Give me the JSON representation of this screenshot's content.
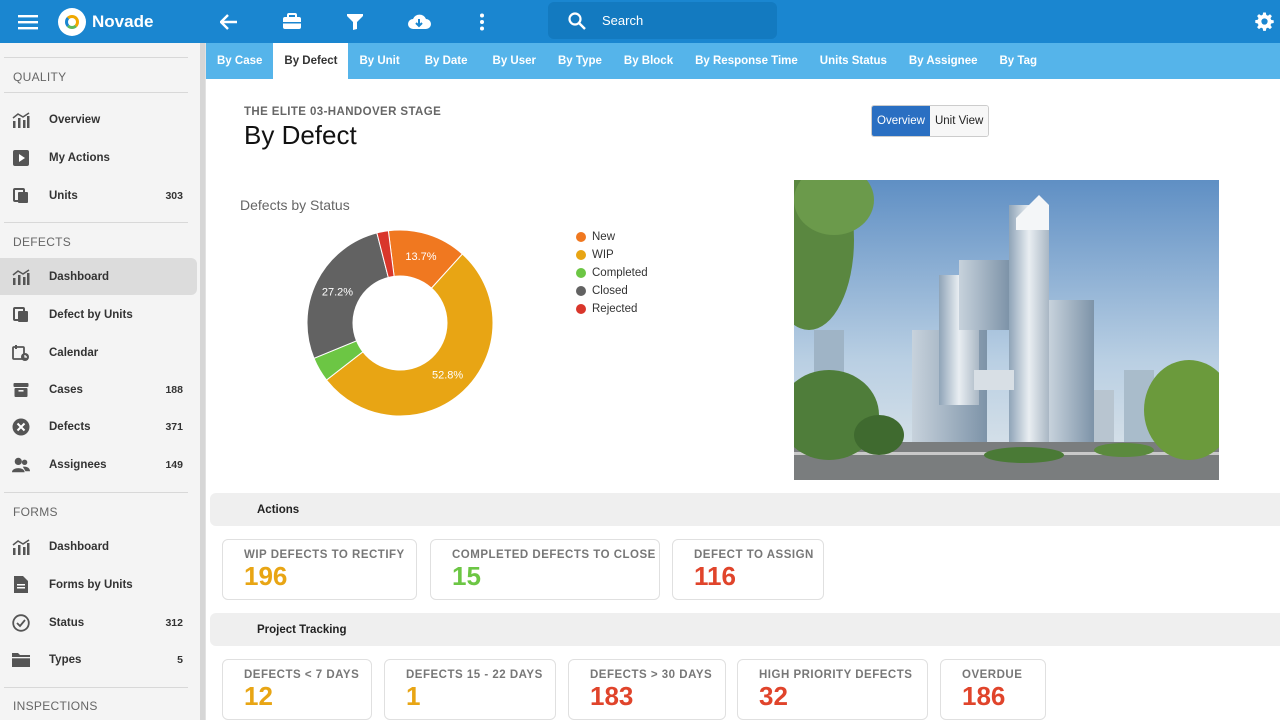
{
  "app": {
    "name": "Novade"
  },
  "search": {
    "placeholder": "Search"
  },
  "sidebar": {
    "sections": [
      {
        "title": "QUALITY",
        "items": [
          {
            "label": "Overview",
            "count": "",
            "icon": "chart-bar-icon"
          },
          {
            "label": "My Actions",
            "count": "",
            "icon": "play-icon"
          },
          {
            "label": "Units",
            "count": "303",
            "icon": "copy-icon"
          }
        ]
      },
      {
        "title": "DEFECTS",
        "items": [
          {
            "label": "Dashboard",
            "count": "",
            "icon": "chart-bar-icon",
            "active": true
          },
          {
            "label": "Defect by Units",
            "count": "",
            "icon": "copy-icon"
          },
          {
            "label": "Calendar",
            "count": "",
            "icon": "calendar-clock-icon"
          },
          {
            "label": "Cases",
            "count": "188",
            "icon": "archive-icon"
          },
          {
            "label": "Defects",
            "count": "371",
            "icon": "close-circle-icon"
          },
          {
            "label": "Assignees",
            "count": "149",
            "icon": "users-icon"
          }
        ]
      },
      {
        "title": "FORMS",
        "items": [
          {
            "label": "Dashboard",
            "count": "",
            "icon": "chart-bar-icon"
          },
          {
            "label": "Forms by Units",
            "count": "",
            "icon": "document-icon"
          },
          {
            "label": "Status",
            "count": "312",
            "icon": "check-circle-icon"
          },
          {
            "label": "Types",
            "count": "5",
            "icon": "folder-icon"
          }
        ]
      },
      {
        "title": "INSPECTIONS",
        "items": []
      }
    ]
  },
  "tabs": [
    {
      "label": "By Case"
    },
    {
      "label": "By Defect",
      "active": true
    },
    {
      "label": "By Unit"
    },
    {
      "label": "By Date"
    },
    {
      "label": "By User"
    },
    {
      "label": "By Type"
    },
    {
      "label": "By Block"
    },
    {
      "label": "By Response Time"
    },
    {
      "label": "Units Status"
    },
    {
      "label": "By Assignee"
    },
    {
      "label": "By Tag"
    }
  ],
  "page": {
    "crumb": "THE ELITE 03-HANDOVER STAGE",
    "title": "By Defect",
    "view_toggle": {
      "overview": "Overview",
      "unit_view": "Unit View"
    }
  },
  "chart_data": {
    "type": "pie",
    "title": "Defects by Status",
    "categories": [
      "New",
      "WIP",
      "Completed",
      "Closed",
      "Rejected"
    ],
    "values": [
      13.7,
      52.8,
      4.3,
      27.2,
      2.0
    ],
    "labels_shown": [
      "13.7%",
      "52.8%",
      "",
      "27.2%",
      ""
    ],
    "colors": [
      "#f07820",
      "#e8a514",
      "#6cc644",
      "#626262",
      "#d9362b"
    ],
    "donut": true,
    "legend": "right"
  },
  "actions": {
    "title": "Actions",
    "cards": [
      {
        "label": "WIP DEFECTS TO RECTIFY",
        "value": "196",
        "color": "#e8a514"
      },
      {
        "label": "COMPLETED DEFECTS TO CLOSE",
        "value": "15",
        "color": "#6cc644"
      },
      {
        "label": "DEFECT TO ASSIGN",
        "value": "116",
        "color": "#e0442b"
      }
    ]
  },
  "tracking": {
    "title": "Project Tracking",
    "cards": [
      {
        "label": "DEFECTS < 7 DAYS",
        "value": "12",
        "color": "#e8a514"
      },
      {
        "label": "DEFECTS 15 - 22 DAYS",
        "value": "1",
        "color": "#e8a514"
      },
      {
        "label": "DEFECTS > 30 DAYS",
        "value": "183",
        "color": "#e0442b"
      },
      {
        "label": "HIGH PRIORITY DEFECTS",
        "value": "32",
        "color": "#e0442b"
      },
      {
        "label": "OVERDUE",
        "value": "186",
        "color": "#e0442b"
      }
    ]
  }
}
